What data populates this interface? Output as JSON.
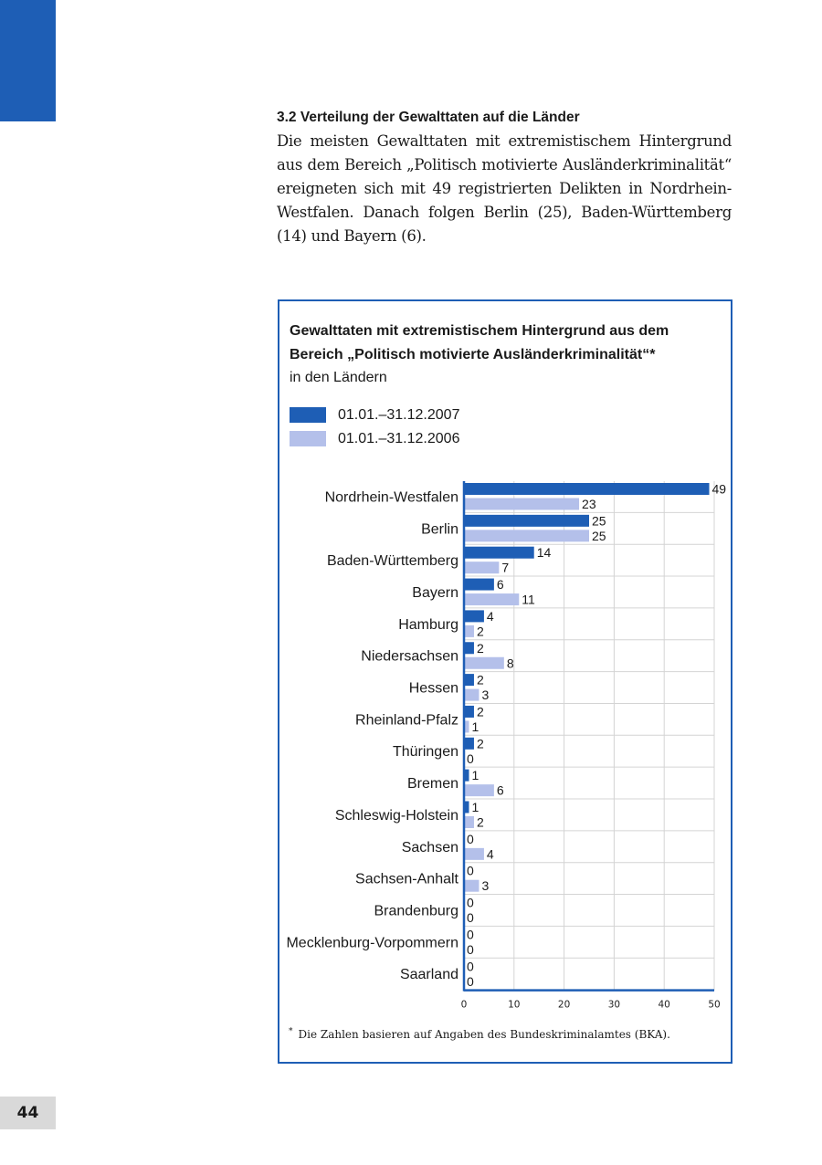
{
  "page_number": "44",
  "section": {
    "heading": "3.2  Verteilung der Gewalttaten auf die Länder",
    "body": "Die meisten Gewalttaten mit extremistischem Hintergrund aus dem Bereich „Politisch motivierte Ausländerkriminalität“ ereigneten sich mit 49 registrierten Delikten in Nordrhein-Westfalen. Danach folgen Berlin (25), Baden-Württemberg (14) und Bayern (6)."
  },
  "colors": {
    "accent": "#1e5eb5",
    "series_2007": "#1e5eb5",
    "series_2006": "#b4c0ea",
    "grid": "#d4d4d4"
  },
  "chart_data": {
    "type": "bar",
    "orientation": "horizontal",
    "title": "Gewalttaten mit extremistischem Hintergrund aus dem Bereich „Politisch motivierte Ausländerkriminalität“*",
    "subtitle": "in den Ländern",
    "categories": [
      "Nordrhein-Westfalen",
      "Berlin",
      "Baden-Württemberg",
      "Bayern",
      "Hamburg",
      "Niedersachsen",
      "Hessen",
      "Rheinland-Pfalz",
      "Thüringen",
      "Bremen",
      "Schleswig-Holstein",
      "Sachsen",
      "Sachsen-Anhalt",
      "Brandenburg",
      "Mecklenburg-Vorpommern",
      "Saarland"
    ],
    "series": [
      {
        "name": "01.01.–31.12.2007",
        "color": "#1e5eb5",
        "values": [
          49,
          25,
          14,
          6,
          4,
          2,
          2,
          2,
          2,
          1,
          1,
          0,
          0,
          0,
          0,
          0
        ]
      },
      {
        "name": "01.01.–31.12.2006",
        "color": "#b4c0ea",
        "values": [
          23,
          25,
          7,
          11,
          2,
          8,
          3,
          1,
          0,
          6,
          2,
          4,
          3,
          0,
          0,
          0
        ]
      }
    ],
    "xlim": [
      0,
      50
    ],
    "xticks": [
      0,
      10,
      20,
      30,
      40,
      50
    ],
    "grid": true,
    "legend_placement": "top-left",
    "footnote_marker": "*",
    "footnote": "Die Zahlen basieren auf Angaben des Bundeskriminalamtes (BKA)."
  }
}
